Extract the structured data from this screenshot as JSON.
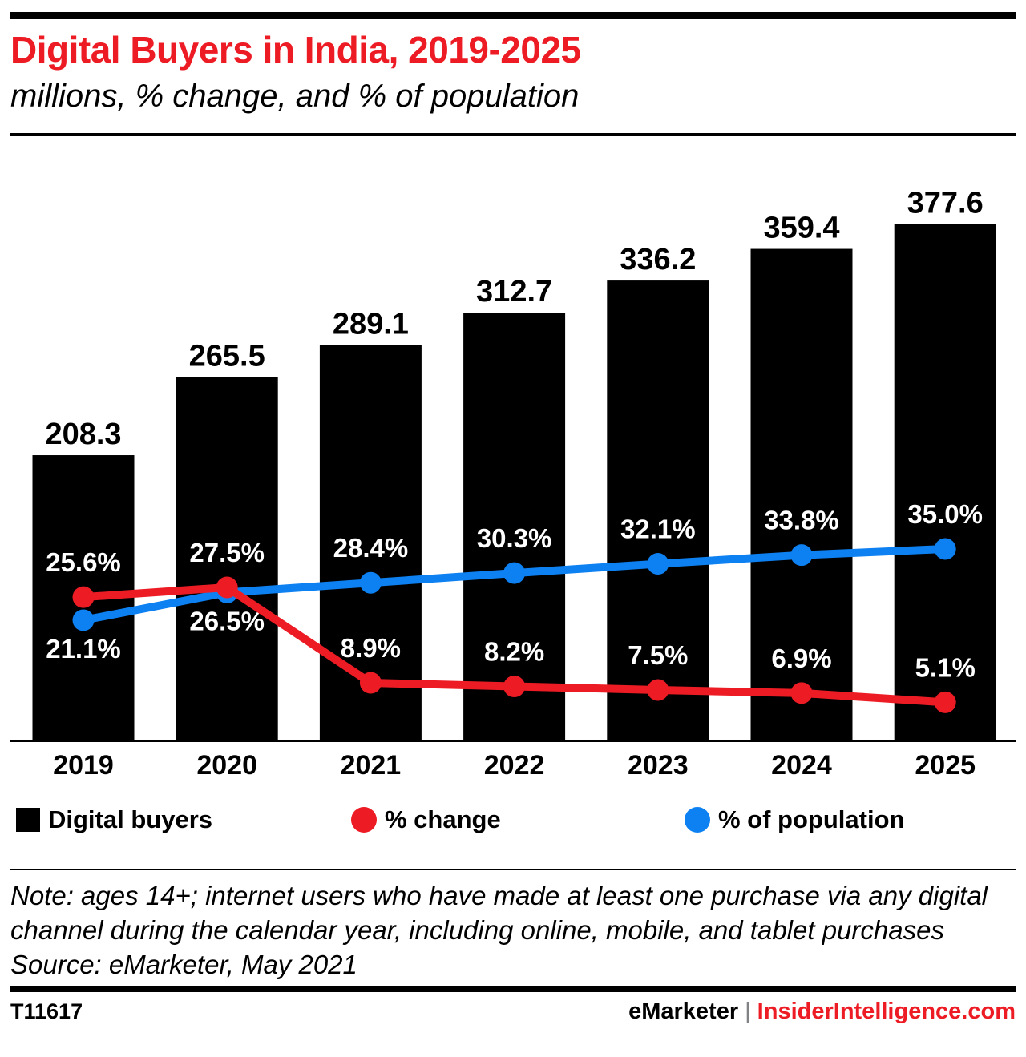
{
  "header": {
    "title": "Digital Buyers in India, 2019-2025",
    "subtitle": "millions, % change, and % of population"
  },
  "chart_data": {
    "type": "bar",
    "title": "Digital Buyers in India, 2019-2025",
    "subtitle": "millions, % change, and % of population",
    "categories": [
      "2019",
      "2020",
      "2021",
      "2022",
      "2023",
      "2024",
      "2025"
    ],
    "series": [
      {
        "name": "Digital buyers",
        "type": "bar",
        "units": "millions",
        "color": "#000000",
        "values": [
          208.3,
          265.5,
          289.1,
          312.7,
          336.2,
          359.4,
          377.6
        ]
      },
      {
        "name": "% change",
        "type": "line",
        "units": "percent",
        "color": "#ed1c24",
        "values": [
          25.6,
          27.5,
          8.9,
          8.2,
          7.5,
          6.9,
          5.1
        ],
        "label_placement": [
          "above",
          "above",
          "above",
          "above",
          "above",
          "above",
          "above"
        ]
      },
      {
        "name": "% of population",
        "type": "line",
        "units": "percent",
        "color": "#0d80f2",
        "values": [
          21.1,
          26.5,
          28.4,
          30.3,
          32.1,
          33.8,
          35.0
        ],
        "label_placement": [
          "below",
          "below",
          "above",
          "above",
          "above",
          "above",
          "above"
        ]
      }
    ],
    "xlabel": "",
    "ylabel": "",
    "ylim": [
      0,
      440
    ],
    "grid": false,
    "legend_position": "bottom",
    "axis_color": "#000000",
    "value_label_color": "#000000",
    "pct_label_color": "#ffffff"
  },
  "legend": {
    "items": [
      {
        "label": "Digital buyers",
        "swatch": "square",
        "color": "#000000"
      },
      {
        "label": "% change",
        "swatch": "circle",
        "color": "#ed1c24"
      },
      {
        "label": "% of population",
        "swatch": "circle",
        "color": "#0d80f2"
      }
    ]
  },
  "note": {
    "text": "Note: ages 14+; internet users who have made at least one purchase via any digital channel during the calendar year, including online, mobile, and tablet purchases",
    "source": "Source: eMarketer, May 2021"
  },
  "footer": {
    "id": "T11617",
    "brand": "eMarketer",
    "separator": "|",
    "site": "InsiderIntelligence.com",
    "brand_color": "#000000",
    "site_color": "#ed1c24"
  },
  "colors": {
    "title_red": "#ed1c24",
    "line_red": "#ed1c24",
    "line_blue": "#0d80f2",
    "bar_black": "#000000"
  }
}
